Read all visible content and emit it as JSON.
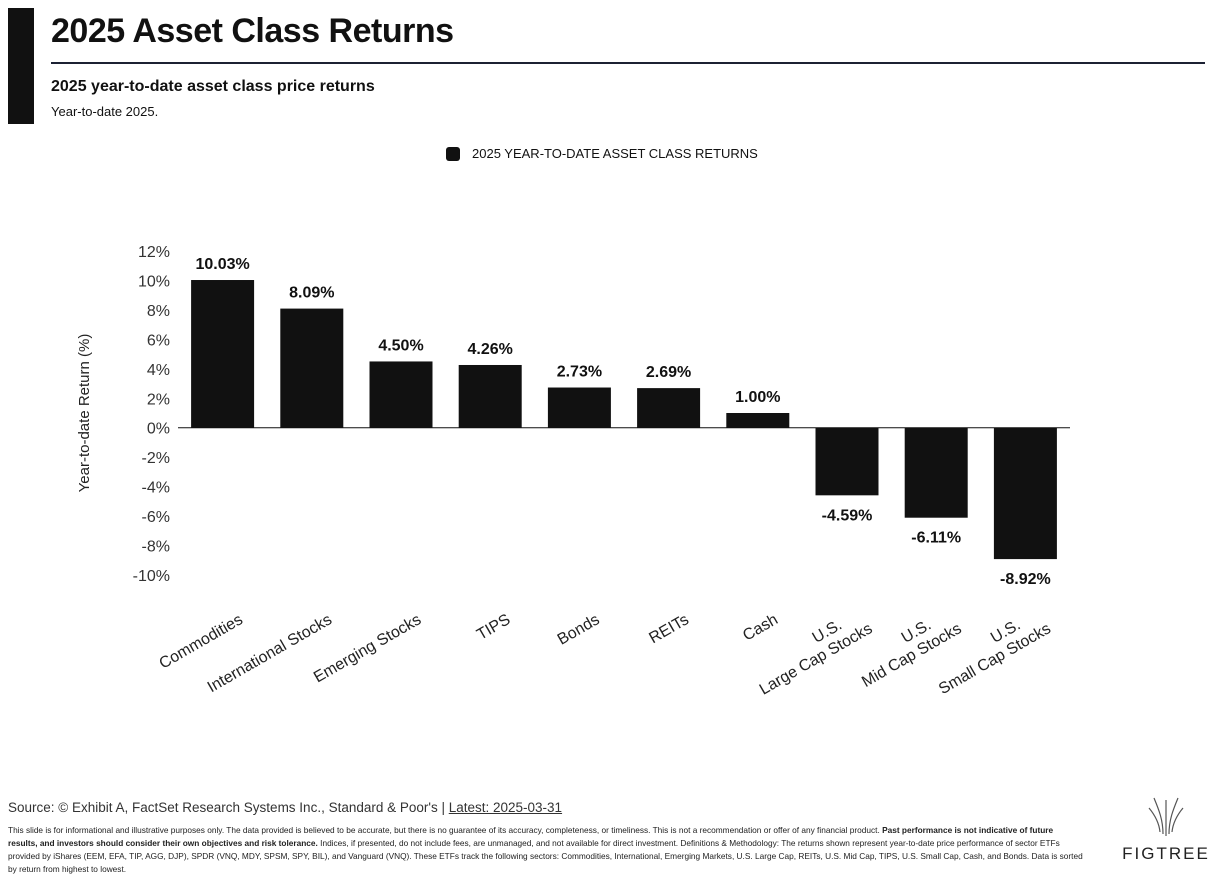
{
  "header": {
    "title": "2025 Asset Class Returns",
    "subtitle": "2025 year-to-date asset class price returns",
    "period": "Year-to-date 2025."
  },
  "chart_data": {
    "type": "bar",
    "title": "",
    "ylabel": "Year-to-date Return (%)",
    "xlabel": "",
    "ylim": [
      -10,
      12
    ],
    "yticks": [
      12,
      10,
      8,
      6,
      4,
      2,
      0,
      -2,
      -4,
      -6,
      -8,
      -10
    ],
    "tick_suffix": "%",
    "legend_position": "top-center",
    "grid": false,
    "series": [
      {
        "name": "2025 YEAR-TO-DATE ASSET CLASS RETURNS",
        "color": "#111111",
        "values": [
          10.03,
          8.09,
          4.5,
          4.26,
          2.73,
          2.69,
          1.0,
          -4.59,
          -6.11,
          -8.92
        ],
        "data_labels": [
          "10.03%",
          "8.09%",
          "4.50%",
          "4.26%",
          "2.73%",
          "2.69%",
          "1.00%",
          "-4.59%",
          "-6.11%",
          "-8.92%"
        ]
      }
    ],
    "categories": [
      [
        "Commodities"
      ],
      [
        "International Stocks"
      ],
      [
        "Emerging Stocks"
      ],
      [
        "TIPS"
      ],
      [
        "Bonds"
      ],
      [
        "REITs"
      ],
      [
        "Cash"
      ],
      [
        "U.S.",
        "Large Cap Stocks"
      ],
      [
        "U.S.",
        "Mid Cap Stocks"
      ],
      [
        "U.S.",
        "Small Cap Stocks"
      ]
    ]
  },
  "footer": {
    "source_prefix": "Source: © Exhibit A, FactSet Research Systems Inc., Standard & Poor's | ",
    "source_link": "Latest: 2025-03-31",
    "disclaimer_1": "This slide is for informational and illustrative purposes only. The data provided is believed to be accurate, but there is no guarantee of its accuracy, completeness, or timeliness. This is not a recommendation or offer of any financial product. ",
    "disclaimer_bold": "Past performance is not indicative of future results, and investors should consider their own objectives and risk tolerance.",
    "disclaimer_2": " Indices, if presented, do not include fees, are unmanaged, and not available for direct investment. Definitions & Methodology: The returns shown represent year-to-date price performance of sector ETFs provided by iShares (EEM, EFA, TIP, AGG, DJP), SPDR (VNQ, MDY, SPSM, SPY, BIL), and Vanguard (VNQ). These ETFs track the following sectors: Commodities, International, Emerging Markets, U.S. Large Cap, REITs, U.S. Mid Cap, TIPS, U.S. Small Cap, Cash, and Bonds. Data is sorted by return from highest to lowest.",
    "logo_text": "FIGTREE"
  }
}
